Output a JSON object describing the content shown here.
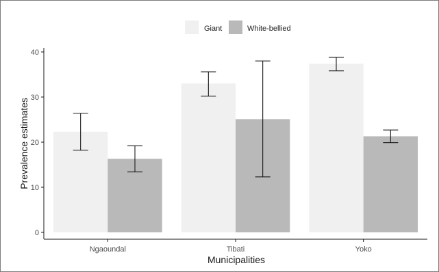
{
  "chart_data": {
    "type": "bar",
    "title": "",
    "xlabel": "Municipalities",
    "ylabel": "Prevalence estimates",
    "categories": [
      "Ngaoundal",
      "Tibati",
      "Yoko"
    ],
    "ylim": [
      0,
      40
    ],
    "yticks": [
      "0",
      "10",
      "20",
      "30",
      "40"
    ],
    "grid": false,
    "legend_position": "top",
    "series": [
      {
        "name": "Giant",
        "color": "#f0f0f0",
        "values": [
          22.3,
          33.0,
          37.4
        ],
        "err_low": [
          18.2,
          30.2,
          35.8
        ],
        "err_high": [
          26.4,
          35.6,
          38.8
        ]
      },
      {
        "name": "White-bellied",
        "color": "#b9b9b9",
        "values": [
          16.3,
          25.1,
          21.3
        ],
        "err_low": [
          13.4,
          12.3,
          19.9
        ],
        "err_high": [
          19.2,
          38.0,
          22.7
        ]
      }
    ]
  }
}
